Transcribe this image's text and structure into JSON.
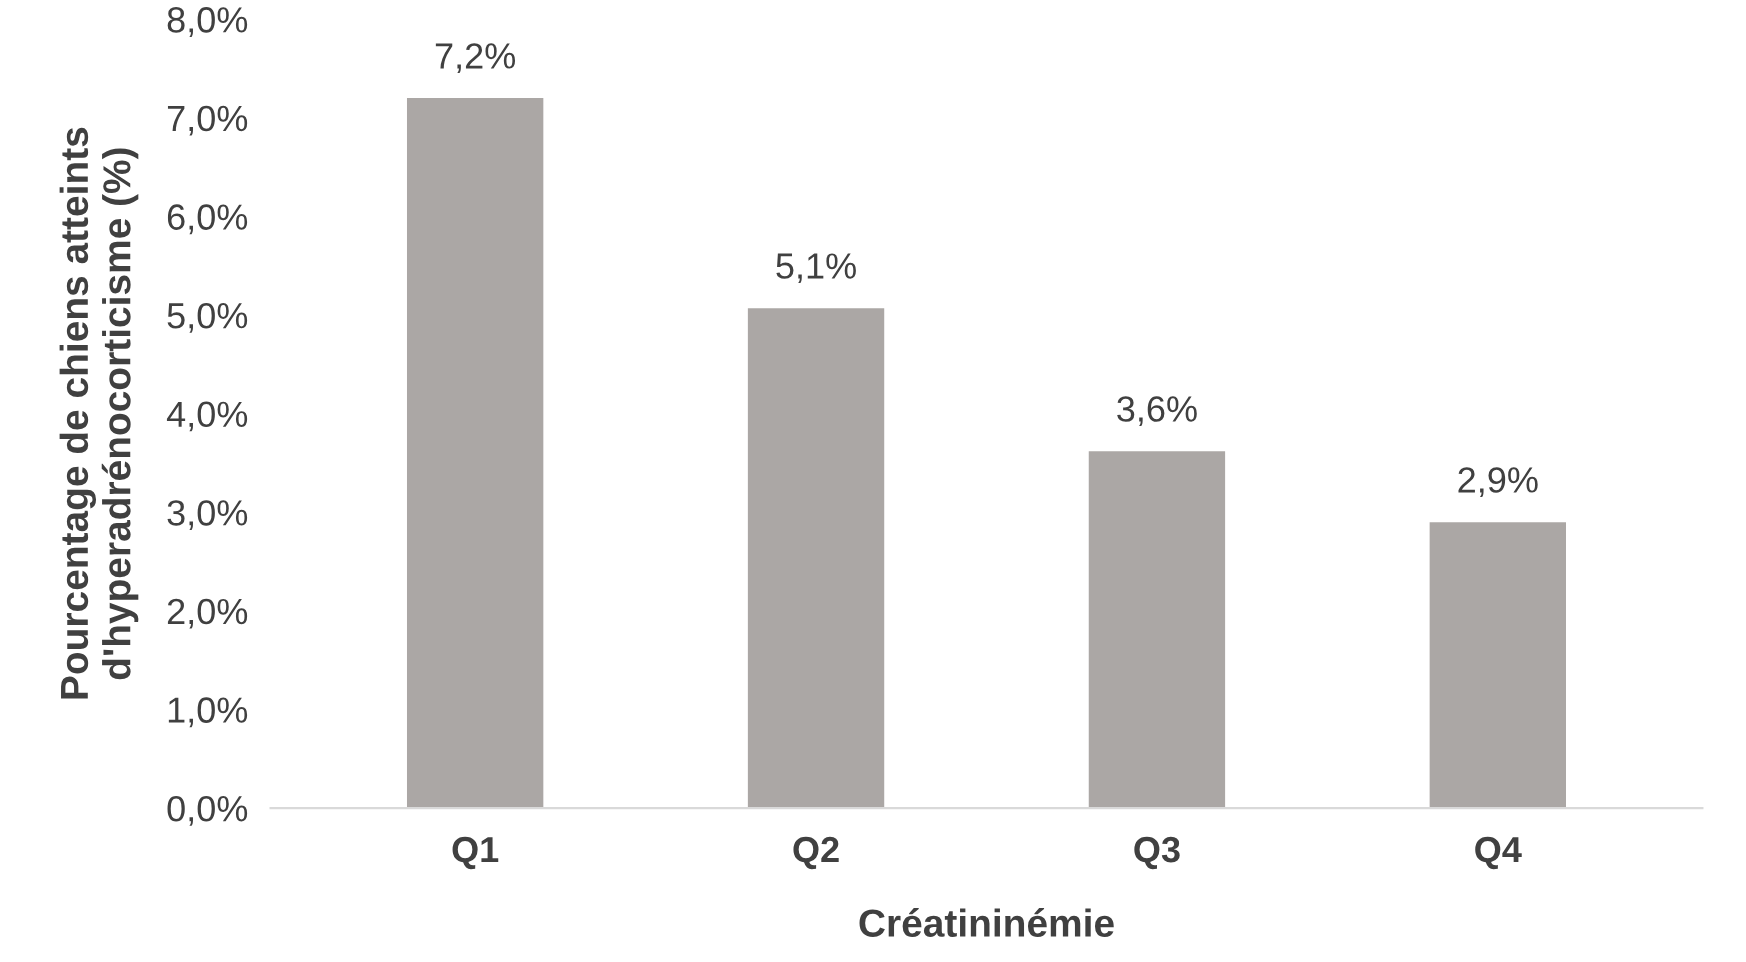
{
  "chart_data": {
    "type": "bar",
    "xlabel": "Créatininémie",
    "ylabel": "Pourcentage de chiens atteints\nd'hyperadrénocorticisme (%)",
    "categories": [
      "Q1",
      "Q2",
      "Q3",
      "Q4"
    ],
    "values": [
      7.2,
      5.07,
      3.62,
      2.9
    ],
    "value_labels": [
      "7,2%",
      "5,1%",
      "3,6%",
      "2,9%"
    ],
    "color": "#aba7a5",
    "ylim": [
      0,
      8
    ],
    "yticks": [
      {
        "value": 0,
        "label": "0,0%"
      },
      {
        "value": 1,
        "label": "1,0%"
      },
      {
        "value": 2,
        "label": "2,0%"
      },
      {
        "value": 3,
        "label": "3,0%"
      },
      {
        "value": 4,
        "label": "4,0%"
      },
      {
        "value": 5,
        "label": "5,0%"
      },
      {
        "value": 6,
        "label": "6,0%"
      },
      {
        "value": 7,
        "label": "7,0%"
      },
      {
        "value": 8,
        "label": "8,0%"
      }
    ],
    "grid": false,
    "legend": false
  }
}
